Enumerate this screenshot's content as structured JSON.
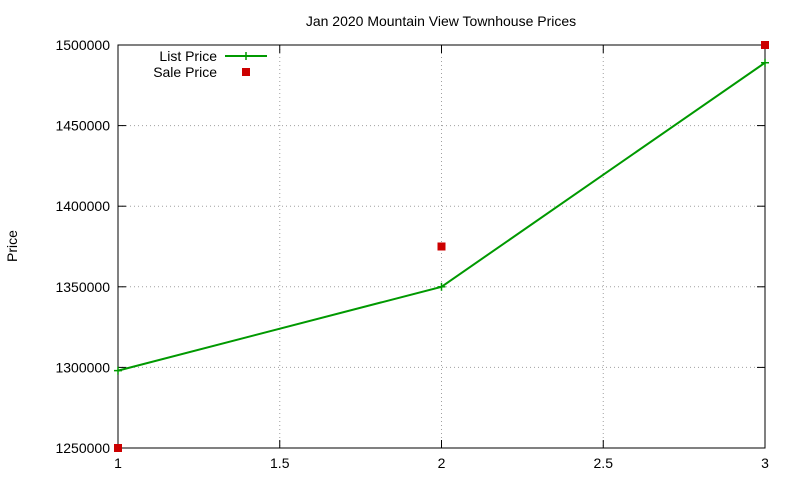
{
  "chart_data": {
    "type": "line",
    "title": "Jan 2020 Mountain View Townhouse Prices",
    "xlabel": "",
    "ylabel": "Price",
    "xlim": [
      1,
      3
    ],
    "ylim": [
      1250000,
      1500000
    ],
    "xticks": [
      1,
      1.5,
      2,
      2.5,
      3
    ],
    "xtick_labels": [
      "1",
      "1.5",
      "2",
      "2.5",
      "3"
    ],
    "yticks": [
      1250000,
      1300000,
      1350000,
      1400000,
      1450000,
      1500000
    ],
    "ytick_labels": [
      "1250000",
      "1300000",
      "1350000",
      "1400000",
      "1450000",
      "1500000"
    ],
    "grid": true,
    "legend_position": "top-left",
    "series": [
      {
        "name": "List Price",
        "style": "line+cross",
        "color": "#009900",
        "x": [
          1,
          2,
          3
        ],
        "y": [
          1298000,
          1350000,
          1489000
        ]
      },
      {
        "name": "Sale Price",
        "style": "square-markers",
        "color": "#cc0000",
        "x": [
          1,
          2,
          3
        ],
        "y": [
          1250000,
          1375000,
          1500000
        ]
      }
    ]
  }
}
